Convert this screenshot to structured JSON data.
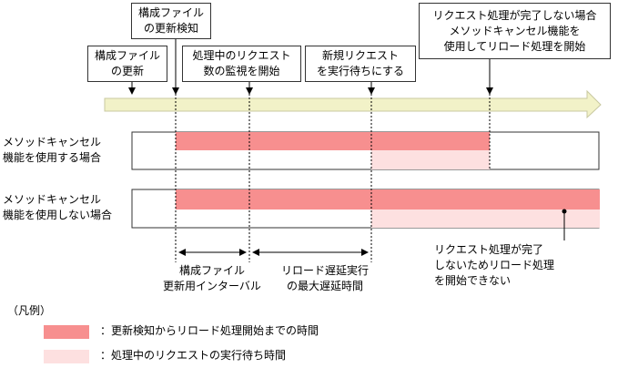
{
  "events": {
    "config_detect": [
      "構成ファイル",
      "の更新検知"
    ],
    "config_update": [
      "構成ファイル",
      "の更新"
    ],
    "monitor_start": [
      "処理中のリクエスト",
      "数の監視を開始"
    ],
    "queue_new": [
      "新規リクエスト",
      "を実行待ちにする"
    ],
    "cancel_reload": [
      "リクエスト処理が完了しない場合",
      "メソッドキャンセル機能を",
      "使用してリロード処理を開始"
    ]
  },
  "rows": [
    {
      "label": [
        "メソッドキャンセル",
        "機能を使用する場合"
      ]
    },
    {
      "label": [
        "メソッドキャンセル",
        "機能を使用しない場合"
      ]
    }
  ],
  "intervals": {
    "update_interval": [
      "構成ファイル",
      "更新用インターバル"
    ],
    "max_delay": [
      "リロード遅延実行",
      "の最大遅延時間"
    ]
  },
  "note": [
    "リクエスト処理が完了",
    "しないためリロード処理",
    "を開始できない"
  ],
  "legend": {
    "title": "（凡例）",
    "items": [
      {
        "label": "：更新検知からリロード処理開始までの時間",
        "color": "#f78f8f"
      },
      {
        "label": "：処理中のリクエストの実行待ち時間",
        "color": "#fde0e0"
      }
    ]
  },
  "colors": {
    "timeline": "#f2f2c8",
    "red": "#f78f8f",
    "pink": "#fde0e0"
  }
}
